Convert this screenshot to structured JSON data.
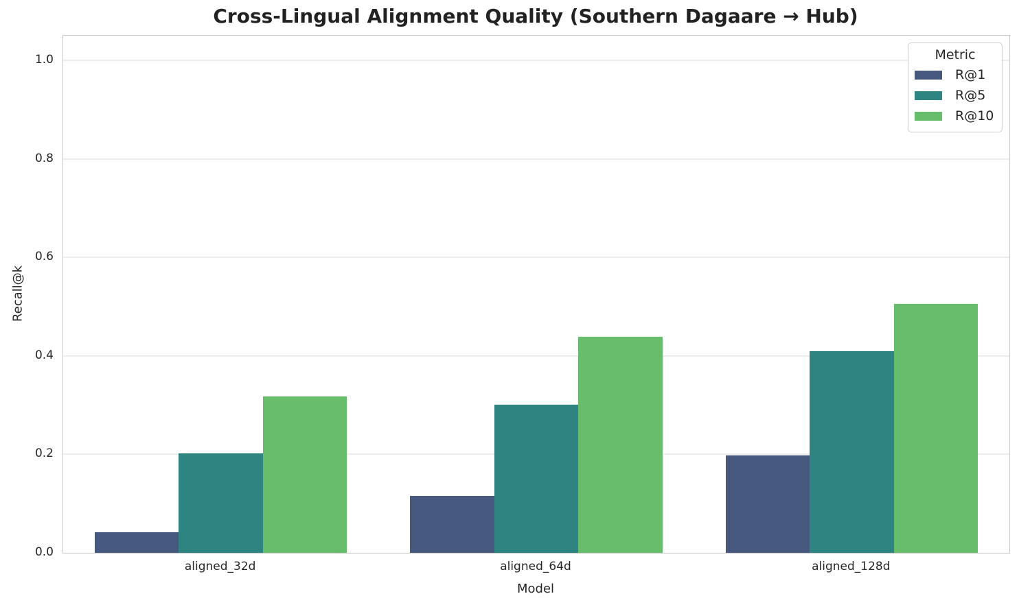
{
  "chart_data": {
    "type": "bar",
    "title": "Cross-Lingual Alignment Quality (Southern Dagaare → Hub)",
    "xlabel": "Model",
    "ylabel": "Recall@k",
    "categories": [
      "aligned_32d",
      "aligned_64d",
      "aligned_128d"
    ],
    "series": [
      {
        "name": "R@1",
        "color": "#46587e",
        "values": [
          0.042,
          0.115,
          0.198
        ]
      },
      {
        "name": "R@5",
        "color": "#2e8480",
        "values": [
          0.202,
          0.301,
          0.41
        ]
      },
      {
        "name": "R@10",
        "color": "#68bd6c",
        "values": [
          0.318,
          0.438,
          0.505
        ]
      }
    ],
    "ylim": [
      0,
      1.05
    ],
    "yticks": [
      0.0,
      0.2,
      0.4,
      0.6,
      0.8,
      1.0
    ],
    "ytick_labels": [
      "0.0",
      "0.2",
      "0.4",
      "0.6",
      "0.8",
      "1.0"
    ],
    "legend_title": "Metric",
    "legend_position": "upper right",
    "grid": "horizontal",
    "style_colors": {
      "grid": "#ececec",
      "spine": "#c8c8c8",
      "text": "#262626",
      "background": "#ffffff"
    }
  }
}
